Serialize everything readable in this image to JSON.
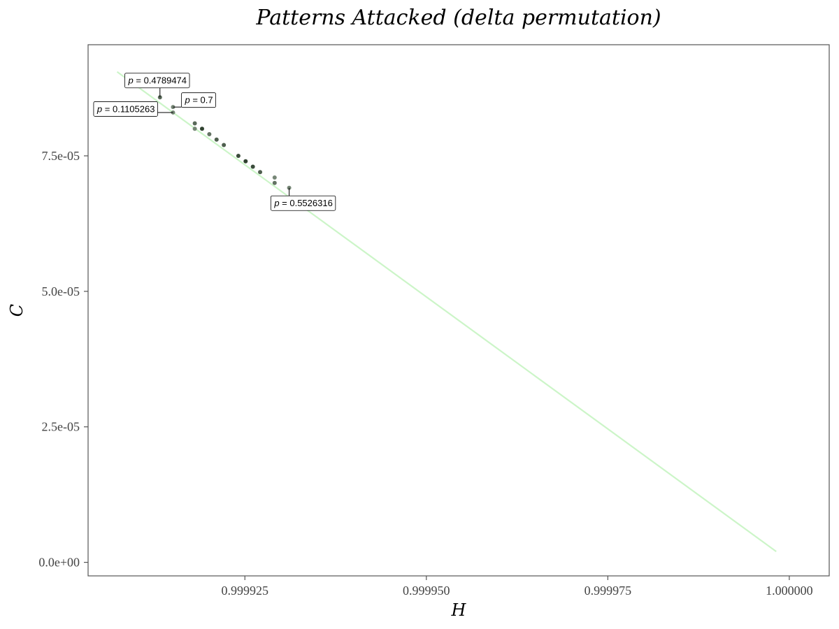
{
  "chart_data": {
    "type": "scatter",
    "title": "Patterns Attacked (delta permutation)",
    "xlabel": "H",
    "ylabel": "C",
    "xlim": [
      0.9999034,
      1.0000055
    ],
    "ylim": [
      -2.5e-06,
      9.55e-05
    ],
    "x_ticks": [
      {
        "value": 0.999925,
        "label": "0.999925"
      },
      {
        "value": 0.99995,
        "label": "0.999950"
      },
      {
        "value": 0.999975,
        "label": "0.999975"
      },
      {
        "value": 1.0,
        "label": "1.000000"
      }
    ],
    "y_ticks": [
      {
        "value": 0.0,
        "label": "0.0e+00"
      },
      {
        "value": 2.5e-05,
        "label": "2.5e-05"
      },
      {
        "value": 5e-05,
        "label": "5.0e-05"
      },
      {
        "value": 7.5e-05,
        "label": "7.5e-05"
      }
    ],
    "grid": false,
    "line": {
      "color": "#ccf5c8",
      "points": [
        {
          "x": 0.9999074,
          "y": 9.05e-05
        },
        {
          "x": 0.9999982,
          "y": 2e-06
        }
      ]
    },
    "point_color_dark": "#1a2e1a",
    "point_color_light": "#8a9a8a",
    "points": [
      {
        "x": 0.9999133,
        "y": 8.58e-05,
        "shade": 0.6
      },
      {
        "x": 0.9999151,
        "y": 8.4e-05,
        "shade": 0.3
      },
      {
        "x": 0.9999151,
        "y": 8.3e-05,
        "shade": 0.3
      },
      {
        "x": 0.9999181,
        "y": 8.1e-05,
        "shade": 0.6
      },
      {
        "x": 0.9999181,
        "y": 8e-05,
        "shade": 0.3
      },
      {
        "x": 0.9999191,
        "y": 8e-05,
        "shade": 1.0
      },
      {
        "x": 0.9999201,
        "y": 7.9e-05,
        "shade": 0.5
      },
      {
        "x": 0.9999211,
        "y": 7.8e-05,
        "shade": 0.7
      },
      {
        "x": 0.9999221,
        "y": 7.7e-05,
        "shade": 0.7
      },
      {
        "x": 0.9999241,
        "y": 7.5e-05,
        "shade": 0.9
      },
      {
        "x": 0.9999251,
        "y": 7.4e-05,
        "shade": 1.0
      },
      {
        "x": 0.9999261,
        "y": 7.3e-05,
        "shade": 0.9
      },
      {
        "x": 0.9999271,
        "y": 7.2e-05,
        "shade": 0.7
      },
      {
        "x": 0.9999291,
        "y": 7.1e-05,
        "shade": 0.3
      },
      {
        "x": 0.9999291,
        "y": 7e-05,
        "shade": 0.5
      },
      {
        "x": 0.9999311,
        "y": 6.91e-05,
        "shade": 0.3
      }
    ],
    "annotations": [
      {
        "p_symbol": "p",
        "value_text": " = 0.4789474",
        "x": 0.9999133,
        "y": 8.58e-05,
        "label_pos": "above"
      },
      {
        "p_symbol": "p",
        "value_text": " = 0.7",
        "x": 0.9999151,
        "y": 8.4e-05,
        "label_pos": "right"
      },
      {
        "p_symbol": "p",
        "value_text": " = 0.1105263",
        "x": 0.9999151,
        "y": 8.3e-05,
        "label_pos": "left"
      },
      {
        "p_symbol": "p",
        "value_text": " = 0.5526316",
        "x": 0.9999311,
        "y": 6.91e-05,
        "label_pos": "below"
      }
    ]
  }
}
